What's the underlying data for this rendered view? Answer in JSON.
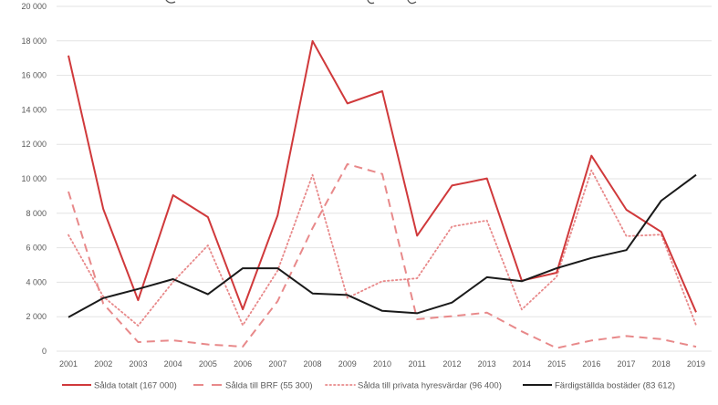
{
  "chart_data": {
    "type": "line",
    "title": "",
    "xlabel": "",
    "ylabel": "",
    "ylim": [
      0,
      20000
    ],
    "yticks": [
      0,
      2000,
      4000,
      6000,
      8000,
      10000,
      12000,
      14000,
      16000,
      18000,
      20000
    ],
    "ytick_labels": [
      "0",
      "2 000",
      "4 000",
      "6 000",
      "8 000",
      "10 000",
      "12 000",
      "14 000",
      "16 000",
      "18 000",
      "20 000"
    ],
    "grid": true,
    "legend_position": "bottom",
    "categories": [
      "2001",
      "2002",
      "2003",
      "2004",
      "2005",
      "2006",
      "2007",
      "2008",
      "2009",
      "2010",
      "2011",
      "2012",
      "2013",
      "2014",
      "2015",
      "2016",
      "2017",
      "2018",
      "2019"
    ],
    "series": [
      {
        "name": "Sålda totalt (167 000)",
        "style": "solid",
        "color": "#d0393b",
        "values": [
          17150,
          8250,
          2960,
          9050,
          7780,
          2430,
          7880,
          17990,
          14370,
          15080,
          6700,
          9610,
          10020,
          4090,
          4550,
          11340,
          8200,
          6920,
          2260
        ]
      },
      {
        "name": "Sålda till BRF (55 300)",
        "style": "dashed",
        "color": "#e8898a",
        "values": [
          9260,
          2750,
          530,
          630,
          390,
          265,
          2900,
          7140,
          10850,
          10280,
          1850,
          2030,
          2240,
          1150,
          180,
          620,
          880,
          700,
          260
        ]
      },
      {
        "name": "Sålda till privata hyresvärdar (96 400)",
        "style": "dotted",
        "color": "#e8898a",
        "values": [
          6740,
          3170,
          1480,
          4020,
          6140,
          1500,
          4670,
          10230,
          3090,
          4060,
          4230,
          7230,
          7580,
          2420,
          4320,
          10490,
          6670,
          6760,
          1500
        ]
      },
      {
        "name": "Färdigställda bostäder (83 612)",
        "style": "solid",
        "color": "#1a1a1a",
        "values": [
          1970,
          3080,
          3610,
          4180,
          3300,
          4810,
          4810,
          3350,
          3260,
          2340,
          2200,
          2820,
          4290,
          4060,
          4810,
          5410,
          5860,
          8730,
          10230
        ]
      }
    ]
  },
  "colors": {
    "grid": "#e3e3e3",
    "tick_text": "#595959"
  }
}
